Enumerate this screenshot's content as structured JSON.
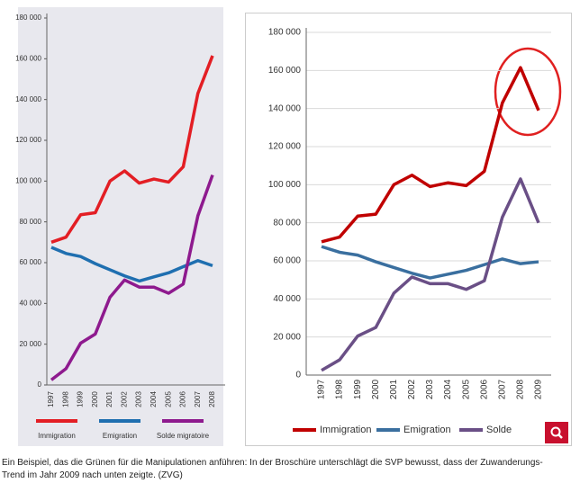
{
  "chart_data": [
    {
      "type": "line",
      "x": [
        "1997",
        "1998",
        "1999",
        "2000",
        "2001",
        "2002",
        "2003",
        "2004",
        "2005",
        "2006",
        "2007",
        "2008"
      ],
      "series": [
        {
          "name": "Immigration",
          "color": "#e31e24",
          "values": [
            70000,
            72500,
            83500,
            84500,
            100000,
            105000,
            99000,
            101000,
            99500,
            107000,
            143000,
            161500
          ]
        },
        {
          "name": "Emigration",
          "color": "#1f6fb0",
          "values": [
            67500,
            64500,
            63000,
            59500,
            56500,
            53500,
            51000,
            53000,
            55000,
            58000,
            61000,
            58500
          ]
        },
        {
          "name": "Solde migratoire",
          "color": "#8e1a8e",
          "values": [
            2500,
            8000,
            20500,
            25000,
            43000,
            51500,
            48000,
            48000,
            45000,
            49500,
            83000,
            103000
          ]
        }
      ],
      "ylim": [
        0,
        180000
      ],
      "yticks": [
        0,
        {
          "value": 20000,
          "label": "20 000"
        },
        {
          "value": 40000,
          "label": "40 000"
        },
        {
          "value": 60000,
          "label": "60 000"
        },
        {
          "value": 80000,
          "label": "80 000"
        },
        {
          "value": 100000,
          "label": "100 000"
        },
        {
          "value": 120000,
          "label": "120 000"
        },
        {
          "value": 140000,
          "label": "140 000"
        },
        {
          "value": 160000,
          "label": "160 000"
        },
        {
          "value": 180000,
          "label": "180 000"
        }
      ],
      "grid": false
    },
    {
      "type": "line",
      "x": [
        "1997",
        "1998",
        "1999",
        "2000",
        "2001",
        "2002",
        "2003",
        "2004",
        "2005",
        "2006",
        "2007",
        "2008",
        "2009"
      ],
      "series": [
        {
          "name": "Immigration",
          "color": "#c00000",
          "values": [
            70000,
            72500,
            83500,
            84500,
            100000,
            105000,
            99000,
            101000,
            99500,
            107000,
            143000,
            161500,
            139000
          ]
        },
        {
          "name": "Emigration",
          "color": "#3a6f9f",
          "values": [
            67500,
            64500,
            63000,
            59500,
            56500,
            53500,
            51000,
            53000,
            55000,
            58000,
            61000,
            58500,
            59500
          ]
        },
        {
          "name": "Solde",
          "color": "#6a4f86",
          "values": [
            2500,
            8000,
            20500,
            25000,
            43000,
            51500,
            48000,
            48000,
            45000,
            49500,
            83000,
            103000,
            80000
          ]
        }
      ],
      "ylim": [
        0,
        180000
      ],
      "yticks": [
        0,
        {
          "value": 20000,
          "label": "20 000"
        },
        {
          "value": 40000,
          "label": "40 000"
        },
        {
          "value": 60000,
          "label": "60 000"
        },
        {
          "value": 80000,
          "label": "80 000"
        },
        {
          "value": 100000,
          "label": "100 000"
        },
        {
          "value": 120000,
          "label": "120 000"
        },
        {
          "value": 140000,
          "label": "140 000"
        },
        {
          "value": 160000,
          "label": "160 000"
        },
        {
          "value": 180000,
          "label": "180 000"
        }
      ],
      "grid": true
    }
  ],
  "caption": "Ein Beispiel, das die Grünen für die Manipulationen anführen: In der Broschüre unterschlägt die SVP bewusst, dass der Zuwanderungs-Trend im Jahr 2009 nach unten zeigte. (ZVG)"
}
